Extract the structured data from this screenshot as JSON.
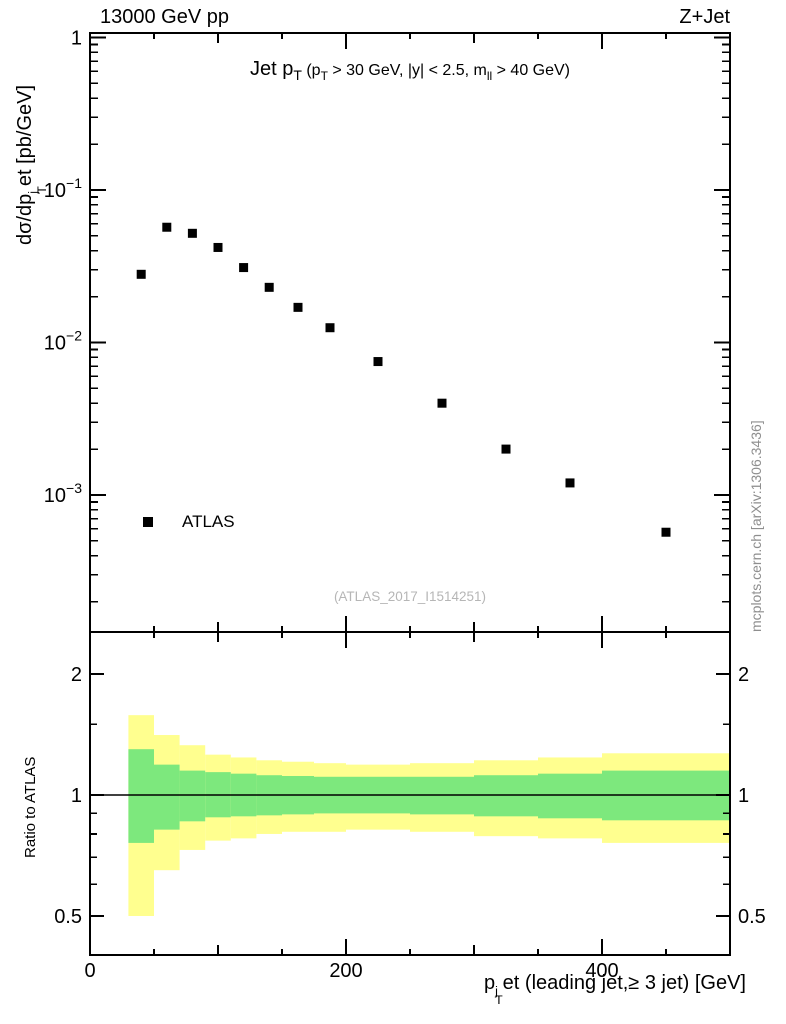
{
  "header": {
    "left": "13000 GeV pp",
    "right": "Z+Jet"
  },
  "title": {
    "main_pre": "Jet p",
    "main_sub": "T",
    "paren_pre": " (p",
    "paren_sub": "T",
    "paren_mid": " > 30 GeV, |y| < 2.5, m",
    "paren_sub2": "ll",
    "paren_post": " > 40 GeV)"
  },
  "axes": {
    "y_main": {
      "p1": "dσ/dp",
      "sup": "j",
      "sub": "T",
      "p2": "et [pb/GeV]"
    },
    "y_ratio": "Ratio to ATLAS",
    "x": {
      "p1": "p",
      "sup": "j",
      "sub": "T",
      "p2": "et (leading jet,≥ 3 jet) [GeV]"
    }
  },
  "legend": {
    "label": "ATLAS"
  },
  "watermark": "(ATLAS_2017_I1514251)",
  "sidenote": "mcplots.cern.ch [arXiv:1306.3436]",
  "colors": {
    "band_outer": "#ffff8f",
    "band_inner": "#7de87d",
    "marker": "#000000"
  },
  "chart_data": [
    {
      "type": "scatter",
      "panel": "main",
      "title": "Jet pT (pT > 30 GeV, |y| < 2.5, mll > 40 GeV)",
      "xlabel": "pTjet (leading jet, ≥ 3 jet) [GeV]",
      "ylabel": "dσ/dpTjet [pb/GeV]",
      "xscale": "linear",
      "yscale": "log",
      "xlim": [
        0,
        500
      ],
      "ylim": [
        0.000126,
        1.07
      ],
      "xticks": {
        "labeled": [
          {
            "v": 0,
            "t": "0"
          },
          {
            "v": 200,
            "t": "200"
          },
          {
            "v": 400,
            "t": "400"
          }
        ],
        "secondary": [
          100,
          300,
          500
        ],
        "minor": [
          50,
          150,
          250,
          350,
          450
        ]
      },
      "yticks": {
        "labeled": [
          {
            "v": 1,
            "base": "1",
            "exp": ""
          },
          {
            "v": 0.1,
            "base": "10",
            "exp": "−1"
          },
          {
            "v": 0.01,
            "base": "10",
            "exp": "−2"
          },
          {
            "v": 0.001,
            "base": "10",
            "exp": "−3"
          }
        ]
      },
      "series": [
        {
          "name": "ATLAS",
          "marker": "square",
          "color": "#000000",
          "x": [
            40,
            60,
            80,
            100,
            120,
            140,
            162.5,
            187.5,
            225,
            275,
            325,
            375,
            450
          ],
          "y": [
            0.028,
            0.057,
            0.052,
            0.042,
            0.031,
            0.023,
            0.017,
            0.0125,
            0.0075,
            0.004,
            0.002,
            0.0012,
            0.00057
          ]
        }
      ]
    },
    {
      "type": "area",
      "panel": "ratio",
      "ylabel": "Ratio to ATLAS",
      "yscale": "log",
      "ylim": [
        0.4,
        2.55
      ],
      "reference_line": 1,
      "yticks": {
        "labeled": [
          {
            "v": 0.5,
            "t": "0.5"
          },
          {
            "v": 1,
            "t": "1"
          },
          {
            "v": 2,
            "t": "2"
          }
        ],
        "minor": [
          0.6,
          0.7,
          0.8,
          0.9,
          1.5
        ]
      },
      "bins": [
        {
          "x1": 30,
          "x2": 50,
          "outer": [
            0.5,
            1.58
          ],
          "inner": [
            0.76,
            1.3
          ]
        },
        {
          "x1": 50,
          "x2": 70,
          "outer": [
            0.65,
            1.41
          ],
          "inner": [
            0.82,
            1.19
          ]
        },
        {
          "x1": 70,
          "x2": 90,
          "outer": [
            0.73,
            1.33
          ],
          "inner": [
            0.86,
            1.15
          ]
        },
        {
          "x1": 90,
          "x2": 110,
          "outer": [
            0.77,
            1.26
          ],
          "inner": [
            0.88,
            1.14
          ]
        },
        {
          "x1": 110,
          "x2": 130,
          "outer": [
            0.78,
            1.24
          ],
          "inner": [
            0.885,
            1.13
          ]
        },
        {
          "x1": 130,
          "x2": 150,
          "outer": [
            0.8,
            1.22
          ],
          "inner": [
            0.89,
            1.12
          ]
        },
        {
          "x1": 150,
          "x2": 175,
          "outer": [
            0.81,
            1.21
          ],
          "inner": [
            0.895,
            1.115
          ]
        },
        {
          "x1": 175,
          "x2": 200,
          "outer": [
            0.81,
            1.2
          ],
          "inner": [
            0.9,
            1.11
          ]
        },
        {
          "x1": 200,
          "x2": 250,
          "outer": [
            0.82,
            1.19
          ],
          "inner": [
            0.9,
            1.11
          ]
        },
        {
          "x1": 250,
          "x2": 300,
          "outer": [
            0.81,
            1.2
          ],
          "inner": [
            0.895,
            1.11
          ]
        },
        {
          "x1": 300,
          "x2": 350,
          "outer": [
            0.79,
            1.22
          ],
          "inner": [
            0.885,
            1.12
          ]
        },
        {
          "x1": 350,
          "x2": 400,
          "outer": [
            0.78,
            1.24
          ],
          "inner": [
            0.875,
            1.13
          ]
        },
        {
          "x1": 400,
          "x2": 500,
          "outer": [
            0.76,
            1.27
          ],
          "inner": [
            0.865,
            1.15
          ]
        }
      ]
    }
  ]
}
